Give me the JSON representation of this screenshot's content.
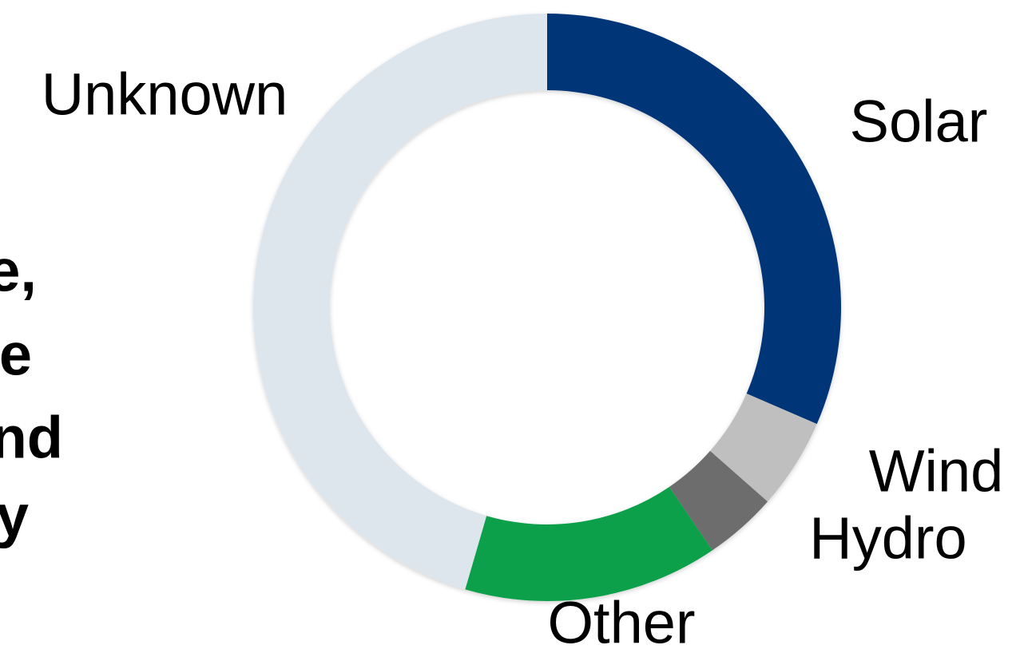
{
  "chart_data": {
    "type": "donut",
    "categories": [
      "Solar",
      "Wind",
      "Hydro",
      "Other",
      "Unknown"
    ],
    "values": [
      31.5,
      5,
      4,
      14,
      45.5
    ],
    "colors": [
      "#003478",
      "#bfbfbf",
      "#6d6d6d",
      "#0ea04b",
      "#dde5ed"
    ]
  },
  "side_text": [
    "e,",
    "e",
    "nd",
    "y"
  ]
}
